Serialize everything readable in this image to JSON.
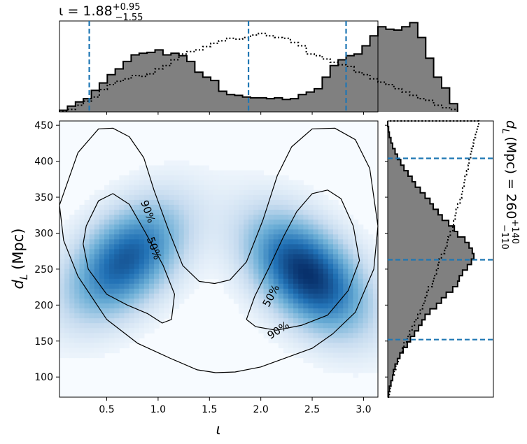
{
  "chart_data": [
    {
      "type": "heatmap",
      "subtype": "2d-posterior-density-with-contours",
      "xlabel_symbol": "ι",
      "ylabel_symbol": "d",
      "ylabel_sub": "L",
      "ylabel_unit": "(Mpc)",
      "xlim": [
        0.04,
        3.14
      ],
      "ylim": [
        72,
        456
      ],
      "xticks": [
        0.5,
        1.0,
        1.5,
        2.0,
        2.5,
        3.0
      ],
      "xtick_labels": [
        "0.5",
        "1.0",
        "1.5",
        "2.0",
        "2.5",
        "3.0"
      ],
      "yticks": [
        100,
        150,
        200,
        250,
        300,
        350,
        400,
        450
      ],
      "ytick_labels": [
        "100",
        "150",
        "200",
        "250",
        "300",
        "350",
        "400",
        "450"
      ],
      "colormap": [
        "#f7fbff",
        "#c6dbef",
        "#6baed6",
        "#2171b5",
        "#08306b"
      ],
      "density_modes": [
        {
          "x": 0.68,
          "y": 262,
          "weight": 0.82
        },
        {
          "x": 2.45,
          "y": 243,
          "weight": 1.0
        }
      ],
      "contour_labels": [
        {
          "text": "90%",
          "x": 0.9,
          "y": 330
        },
        {
          "text": "50%",
          "x": 0.96,
          "y": 279
        },
        {
          "text": "50%",
          "x": 2.1,
          "y": 213
        },
        {
          "text": "90%",
          "x": 2.17,
          "y": 165
        }
      ],
      "contours": [
        {
          "level": "90%",
          "points": [
            [
              0.04,
              339
            ],
            [
              0.22,
              412
            ],
            [
              0.42,
              445
            ],
            [
              0.56,
              446
            ],
            [
              0.72,
              434
            ],
            [
              0.86,
              405
            ],
            [
              0.96,
              360
            ],
            [
              1.1,
              305
            ],
            [
              1.24,
              255
            ],
            [
              1.4,
              233
            ],
            [
              1.55,
              230
            ],
            [
              1.7,
              235
            ],
            [
              1.86,
              260
            ],
            [
              2.02,
              318
            ],
            [
              2.16,
              380
            ],
            [
              2.3,
              420
            ],
            [
              2.5,
              445
            ],
            [
              2.72,
              446
            ],
            [
              2.92,
              430
            ],
            [
              3.06,
              390
            ],
            [
              3.14,
              310
            ],
            [
              3.1,
              250
            ],
            [
              2.92,
              190
            ],
            [
              2.7,
              160
            ],
            [
              2.5,
              140
            ],
            [
              2.25,
              127
            ],
            [
              2.0,
              114
            ],
            [
              1.75,
              107
            ],
            [
              1.56,
              106
            ],
            [
              1.38,
              110
            ],
            [
              1.12,
              126
            ],
            [
              0.8,
              147
            ],
            [
              0.5,
              180
            ],
            [
              0.22,
              240
            ],
            [
              0.08,
              290
            ],
            [
              0.04,
              339
            ]
          ]
        },
        {
          "level": "50%",
          "points": [
            [
              0.3,
              310
            ],
            [
              0.42,
              345
            ],
            [
              0.56,
              355
            ],
            [
              0.72,
              340
            ],
            [
              0.88,
              300
            ],
            [
              1.05,
              255
            ],
            [
              1.16,
              215
            ],
            [
              1.13,
              180
            ],
            [
              1.04,
              175
            ],
            [
              0.9,
              188
            ],
            [
              0.7,
              200
            ],
            [
              0.5,
              215
            ],
            [
              0.32,
              250
            ],
            [
              0.27,
              285
            ],
            [
              0.3,
              310
            ]
          ]
        },
        {
          "level": "50%",
          "points": [
            [
              1.86,
              180
            ],
            [
              1.95,
              170
            ],
            [
              2.15,
              165
            ],
            [
              2.4,
              172
            ],
            [
              2.65,
              186
            ],
            [
              2.85,
              220
            ],
            [
              2.96,
              262
            ],
            [
              2.9,
              310
            ],
            [
              2.78,
              348
            ],
            [
              2.65,
              360
            ],
            [
              2.5,
              355
            ],
            [
              2.35,
              330
            ],
            [
              2.22,
              295
            ],
            [
              2.08,
              252
            ],
            [
              1.94,
              212
            ],
            [
              1.86,
              180
            ]
          ]
        }
      ]
    },
    {
      "type": "histogram",
      "orientation": "vertical",
      "position": "top",
      "annotation_prefix": "ι = 1.88",
      "annotation_sup": "+0.95",
      "annotation_sub": "−1.55",
      "xlim": [
        0.04,
        3.14
      ],
      "bin_edges_start": 0.04,
      "bin_width": 0.0775,
      "series": [
        {
          "style": "filled",
          "values": [
            2,
            7,
            12,
            16,
            26,
            35,
            45,
            52,
            61,
            69,
            71,
            72,
            75,
            69,
            71,
            68,
            61,
            48,
            42,
            38,
            25,
            21,
            20,
            18,
            17,
            17,
            16,
            17,
            15,
            16,
            21,
            24,
            28,
            42,
            56,
            63,
            68,
            70,
            80,
            92,
            103,
            100,
            99,
            103,
            108,
            90,
            65,
            42,
            29,
            10
          ]
        },
        {
          "style": "dotted",
          "values": [
            1,
            3,
            8,
            13,
            18,
            27,
            33,
            37,
            40,
            44,
            43,
            46,
            52,
            56,
            63,
            70,
            73,
            75,
            79,
            83,
            86,
            89,
            88,
            90,
            93,
            95,
            92,
            90,
            89,
            84,
            80,
            70,
            68,
            64,
            60,
            57,
            55,
            48,
            45,
            40,
            36,
            33,
            28,
            24,
            20,
            16,
            14,
            8,
            5,
            3
          ]
        }
      ],
      "quantile_lines": [
        0.33,
        1.88,
        2.83
      ],
      "line_color": "#1f77b4"
    },
    {
      "type": "histogram",
      "orientation": "horizontal",
      "position": "right",
      "annotation_symbol": "d",
      "annotation_sub_L": "L",
      "annotation_mid": "(Mpc) = 260",
      "annotation_sup": "+140",
      "annotation_sub": "−110",
      "ylim": [
        72,
        456
      ],
      "bin_edges_start": 72,
      "bin_width": 7.68,
      "series": [
        {
          "style": "filled",
          "values": [
            1,
            2,
            4,
            6,
            7,
            9,
            12,
            15,
            19,
            24,
            28,
            33,
            38,
            42,
            46,
            52,
            60,
            66,
            72,
            80,
            86,
            88,
            92,
            98,
            103,
            106,
            104,
            100,
            95,
            86,
            82,
            75,
            67,
            62,
            56,
            52,
            46,
            40,
            34,
            30,
            25,
            20,
            16,
            12,
            9,
            6,
            4,
            2,
            1,
            0
          ]
        },
        {
          "style": "dotted",
          "values": [
            2,
            3,
            4,
            6,
            8,
            10,
            13,
            15,
            18,
            20,
            24,
            27,
            30,
            33,
            37,
            40,
            43,
            46,
            48,
            50,
            55,
            57,
            60,
            62,
            63,
            66,
            70,
            73,
            74,
            77,
            80,
            81,
            83,
            84,
            86,
            89,
            91,
            92,
            94,
            95,
            97,
            99,
            100,
            102,
            103,
            105,
            106,
            108,
            110,
            112
          ]
        }
      ],
      "quantile_lines": [
        152,
        263,
        404
      ],
      "line_color": "#1f77b4"
    }
  ]
}
